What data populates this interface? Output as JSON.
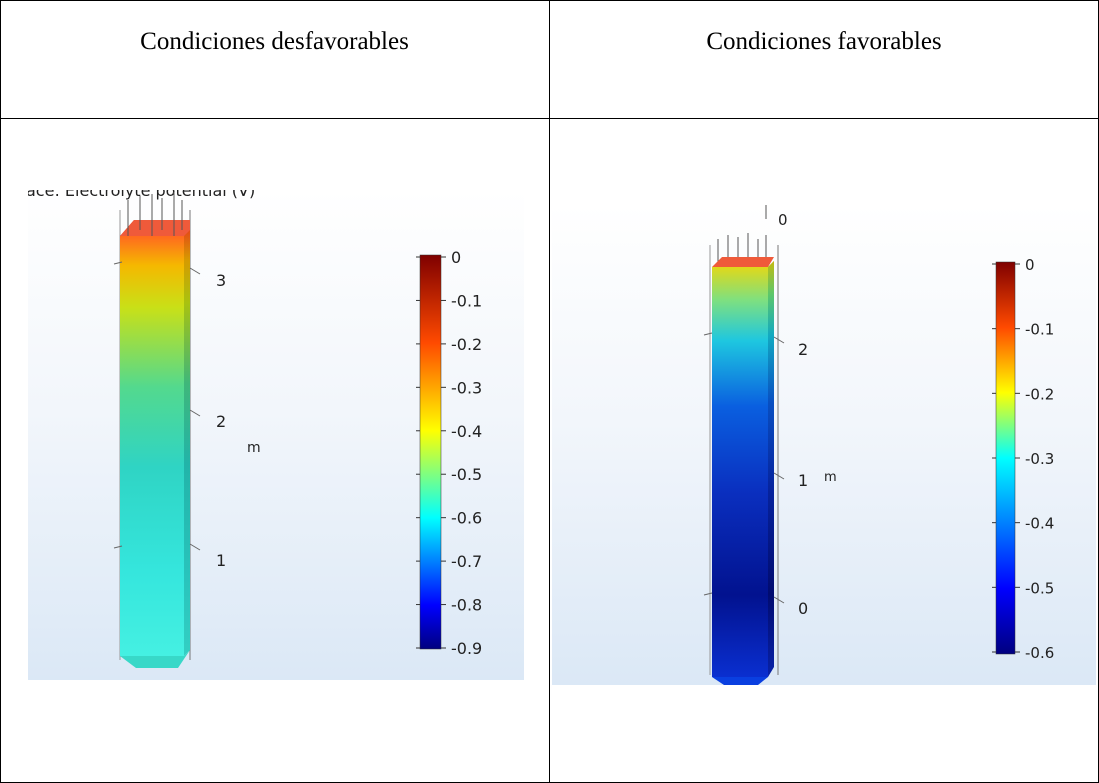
{
  "table": {
    "col1_header": "Condiciones desfavorables",
    "col2_header": "Condiciones favorables"
  },
  "left_plot": {
    "cropped_title": "ace: Electrolyte potential (V)",
    "axis_unit": "m",
    "axis_ticks": [
      "3",
      "2",
      "1"
    ],
    "colorbar_ticks": [
      "0",
      "-0.1",
      "-0.2",
      "-0.3",
      "-0.4",
      "-0.5",
      "-0.6",
      "-0.7",
      "-0.8",
      "-0.9"
    ]
  },
  "right_plot": {
    "axis_unit": "m",
    "top_tick": "0",
    "axis_ticks": [
      "2",
      "1",
      "0"
    ],
    "colorbar_ticks": [
      "0",
      "-0.1",
      "-0.2",
      "-0.3",
      "-0.4",
      "-0.5",
      "-0.6"
    ]
  },
  "colors": {
    "colormap": [
      "#00007f",
      "#0000ff",
      "#007fff",
      "#00ffff",
      "#7fff7f",
      "#ffff00",
      "#ff7f00",
      "#ff0000",
      "#7f0000"
    ]
  }
}
